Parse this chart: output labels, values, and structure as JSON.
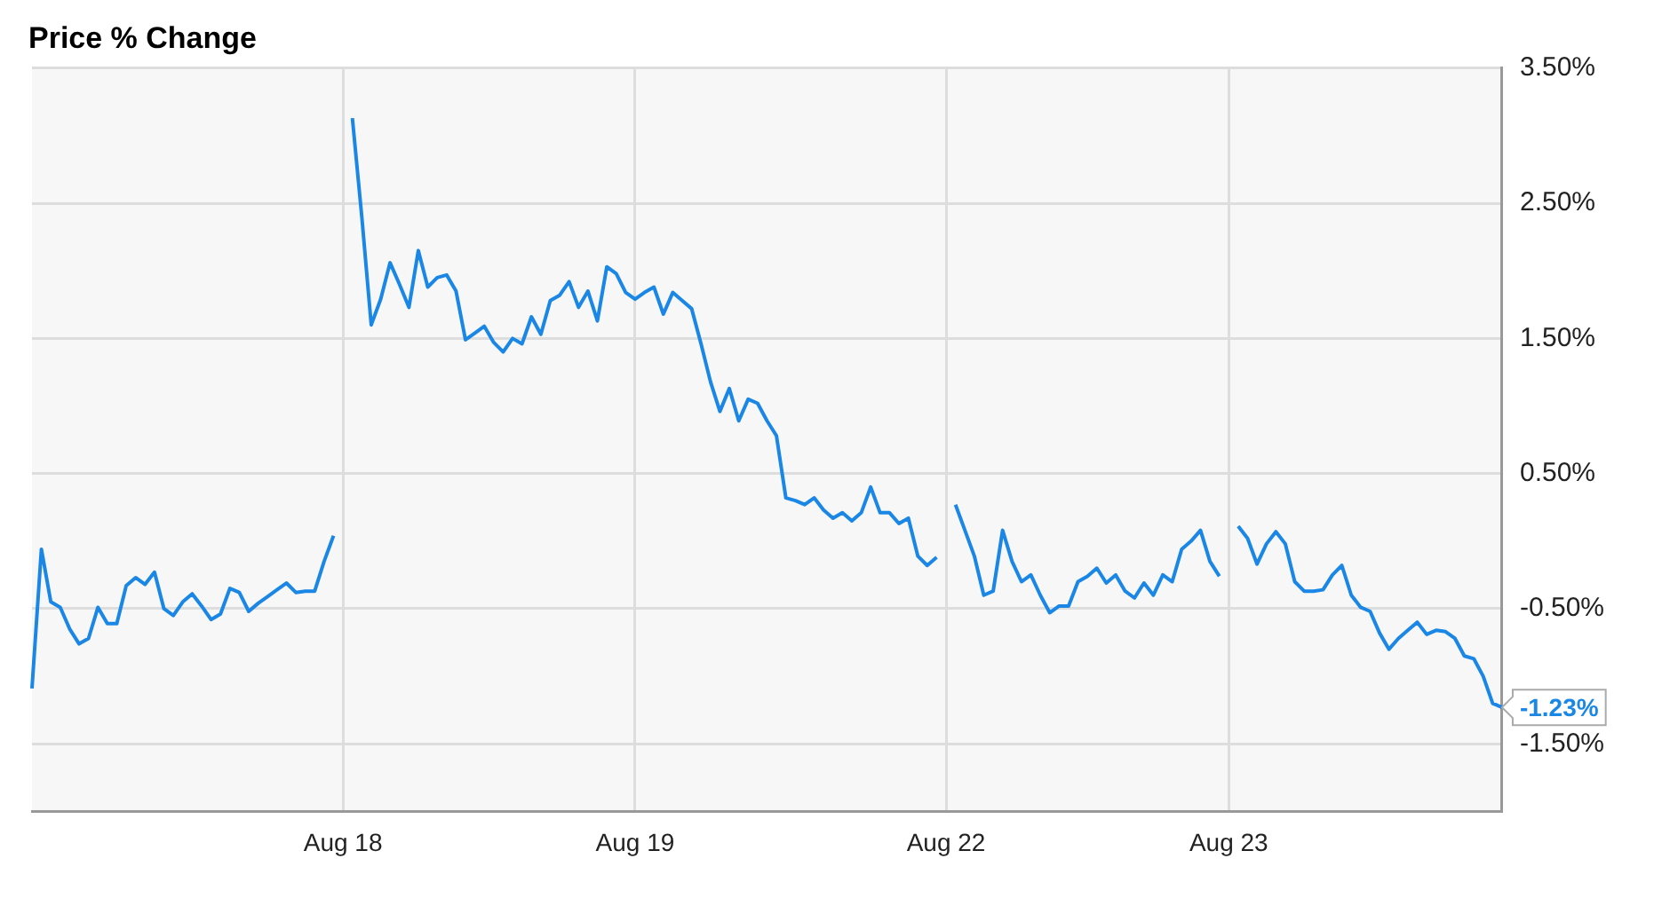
{
  "chart_data": {
    "type": "line",
    "title": "Price % Change",
    "categories": [
      null,
      null,
      null,
      null,
      null,
      null,
      null,
      null,
      null,
      null,
      null,
      null,
      null,
      null,
      null,
      null,
      null,
      null,
      null,
      null,
      null,
      null,
      null,
      null,
      null,
      null,
      null,
      null,
      null,
      null,
      null,
      null,
      null,
      "Aug 18",
      null,
      null,
      null,
      null,
      null,
      null,
      null,
      null,
      null,
      null,
      null,
      null,
      null,
      null,
      null,
      null,
      null,
      null,
      null,
      null,
      null,
      null,
      null,
      null,
      null,
      null,
      null,
      null,
      null,
      null,
      "Aug 19",
      null,
      null,
      null,
      null,
      null,
      null,
      null,
      null,
      null,
      null,
      null,
      null,
      null,
      null,
      null,
      null,
      null,
      null,
      null,
      null,
      null,
      null,
      null,
      null,
      null,
      null,
      null,
      null,
      null,
      null,
      null,
      null,
      "Aug 22",
      null,
      null,
      null,
      null,
      null,
      null,
      null,
      null,
      null,
      null,
      null,
      null,
      null,
      null,
      null,
      null,
      null,
      null,
      null,
      null,
      null,
      null,
      null,
      null,
      null,
      null,
      null,
      null,
      null,
      "Aug 23",
      null,
      null,
      null,
      null,
      null,
      null,
      null,
      null,
      null,
      null,
      null,
      null,
      null,
      null,
      null,
      null,
      null,
      null,
      null,
      null,
      null,
      null,
      null,
      null,
      null,
      null,
      null,
      null,
      null
    ],
    "values": [
      -1.09,
      -0.06,
      -0.45,
      -0.49,
      -0.65,
      -0.76,
      -0.72,
      -0.49,
      -0.61,
      -0.61,
      -0.33,
      -0.27,
      -0.32,
      -0.23,
      -0.5,
      -0.55,
      -0.45,
      -0.39,
      -0.48,
      -0.58,
      -0.54,
      -0.35,
      -0.38,
      -0.52,
      -0.46,
      -0.41,
      -0.36,
      -0.31,
      -0.38,
      -0.37,
      -0.37,
      -0.15,
      0.04,
      null,
      3.13,
      2.4,
      1.6,
      1.79,
      2.06,
      1.9,
      1.73,
      2.15,
      1.88,
      1.95,
      1.97,
      1.85,
      1.49,
      1.54,
      1.59,
      1.47,
      1.4,
      1.5,
      1.46,
      1.66,
      1.53,
      1.78,
      1.82,
      1.92,
      1.73,
      1.85,
      1.63,
      2.03,
      1.98,
      1.84,
      1.79,
      1.84,
      1.88,
      1.68,
      1.84,
      1.78,
      1.72,
      1.46,
      1.18,
      0.96,
      1.13,
      0.89,
      1.05,
      1.02,
      0.89,
      0.78,
      0.32,
      0.3,
      0.27,
      0.32,
      0.23,
      0.17,
      0.21,
      0.15,
      0.21,
      0.4,
      0.21,
      0.21,
      0.13,
      0.17,
      -0.11,
      -0.18,
      -0.12,
      null,
      0.27,
      0.08,
      -0.11,
      -0.4,
      -0.37,
      0.08,
      -0.15,
      -0.3,
      -0.25,
      -0.4,
      -0.53,
      -0.48,
      -0.48,
      -0.3,
      -0.26,
      -0.2,
      -0.31,
      -0.25,
      -0.37,
      -0.42,
      -0.31,
      -0.4,
      -0.25,
      -0.3,
      -0.06,
      0.0,
      0.08,
      -0.15,
      -0.26,
      null,
      0.11,
      0.02,
      -0.17,
      -0.02,
      0.07,
      -0.02,
      -0.3,
      -0.37,
      -0.37,
      -0.36,
      -0.25,
      -0.18,
      -0.4,
      -0.49,
      -0.52,
      -0.68,
      -0.8,
      -0.72,
      -0.66,
      -0.6,
      -0.69,
      -0.66,
      -0.67,
      -0.72,
      -0.85,
      -0.87,
      -1.0,
      -1.2,
      -1.23
    ],
    "color": "#1a87e6",
    "ylim": [
      -2,
      3.5
    ],
    "yticks": [
      {
        "value": -1.5,
        "label": "-1.50%"
      },
      {
        "value": -0.5,
        "label": "-0.50%"
      },
      {
        "value": 0.5,
        "label": "0.50%"
      },
      {
        "value": 1.5,
        "label": "1.50%"
      },
      {
        "value": 2.5,
        "label": "2.50%"
      },
      {
        "value": 3.5,
        "label": "3.50%"
      }
    ],
    "grid": true,
    "legend": false,
    "annotations": [
      "-1.23%"
    ]
  }
}
